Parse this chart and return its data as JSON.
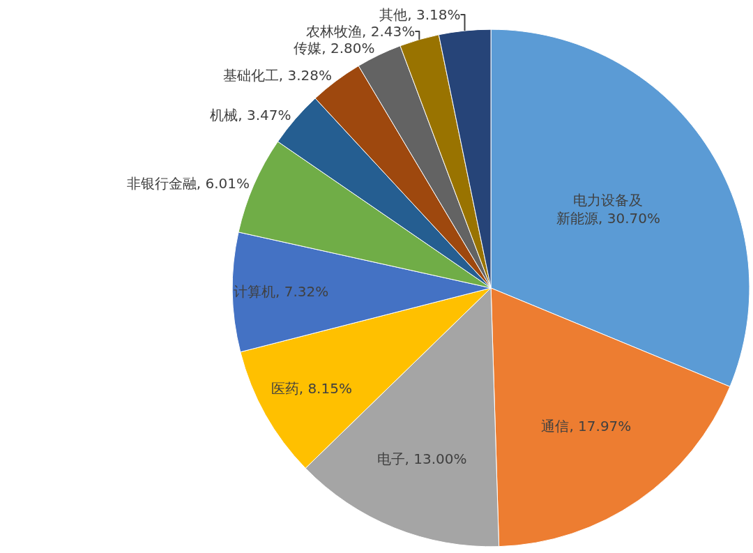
{
  "chart_data": {
    "type": "pie",
    "categories": [
      "电力设备及新能源",
      "通信",
      "电子",
      "医药",
      "计算机",
      "非银行金融",
      "机械",
      "基础化工",
      "传媒",
      "农林牧渔",
      "其他"
    ],
    "values": [
      30.7,
      17.97,
      13.0,
      8.15,
      7.32,
      6.01,
      3.47,
      3.28,
      2.8,
      2.43,
      3.18
    ],
    "value_labels": [
      "30.70%",
      "17.97%",
      "13.00%",
      "8.15%",
      "7.32%",
      "6.01%",
      "3.47%",
      "3.28%",
      "2.80%",
      "2.43%",
      "3.18%"
    ],
    "colors": [
      "#5b9bd5",
      "#ed7d31",
      "#a5a5a5",
      "#ffc000",
      "#4472c4",
      "#70ad47",
      "#255e91",
      "#9e480e",
      "#636363",
      "#997300",
      "#264478"
    ],
    "legend": false
  }
}
